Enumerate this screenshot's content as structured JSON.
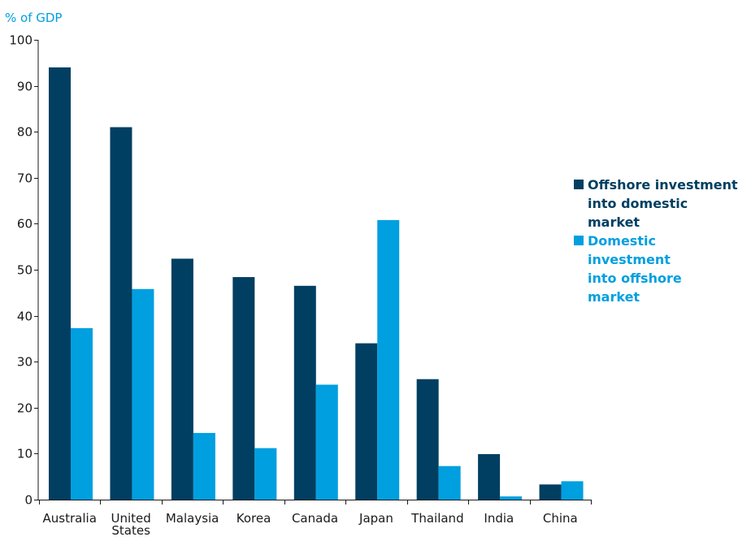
{
  "chart_data": {
    "type": "bar",
    "unit_label": "% of GDP",
    "categories": [
      "Australia",
      "United States",
      "Malaysia",
      "Korea",
      "Canada",
      "Japan",
      "Thailand",
      "India",
      "China"
    ],
    "series": [
      {
        "name": "Offshore investment\ninto domestic market",
        "color": "#003f61",
        "values": [
          94,
          81,
          52.4,
          48.4,
          46.5,
          34,
          26.2,
          9.9,
          3.3
        ]
      },
      {
        "name": "Domestic investment\ninto offshore market",
        "color": "#009fe0",
        "values": [
          37.3,
          45.8,
          14.5,
          11.2,
          25,
          60.8,
          7.3,
          0.7,
          4
        ]
      }
    ],
    "ylim": [
      0,
      100
    ],
    "yticks": [
      0,
      10,
      20,
      30,
      40,
      50,
      60,
      70,
      80,
      90,
      100
    ],
    "legend_position": "right",
    "grid": false
  }
}
